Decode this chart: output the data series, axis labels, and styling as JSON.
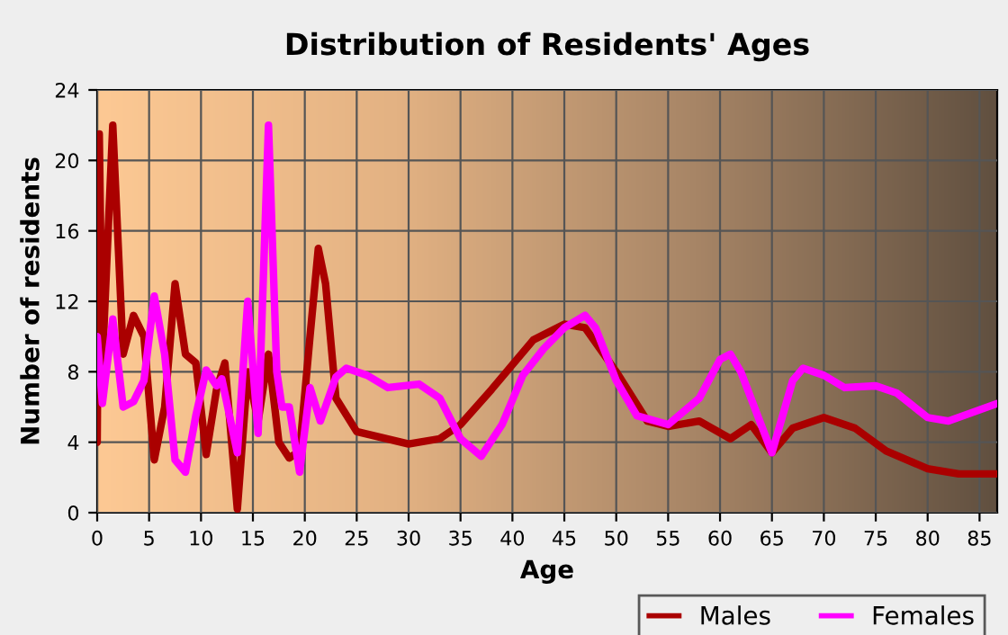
{
  "chart_data": {
    "type": "line",
    "title": "Distribution of Residents' Ages",
    "xlabel": "Age",
    "ylabel": "Number of residents",
    "xlim": [
      0,
      86.7
    ],
    "ylim": [
      0,
      24
    ],
    "xticks": [
      0,
      5,
      10,
      15,
      20,
      25,
      30,
      35,
      40,
      45,
      50,
      55,
      60,
      65,
      70,
      75,
      80,
      85
    ],
    "yticks": [
      0,
      4,
      8,
      12,
      16,
      20,
      24
    ],
    "grid": true,
    "legend": "bottom right",
    "marker": "none",
    "line_style": "solid",
    "series": [
      {
        "name": "Males",
        "color": "#aa0000",
        "x": [
          0,
          0.2,
          0.5,
          1.5,
          2.5,
          3.5,
          4.5,
          5.5,
          6.5,
          7.5,
          8.5,
          9.5,
          10.5,
          11.5,
          12.3,
          13.5,
          14.5,
          15.5,
          16.5,
          17.5,
          18.5,
          19.5,
          20.5,
          21.3,
          22,
          23,
          25,
          30,
          33,
          35,
          38,
          42,
          45,
          47,
          50,
          53,
          55,
          58,
          61,
          63,
          65,
          67,
          70,
          73,
          76,
          80,
          83,
          86.7
        ],
        "values": [
          4,
          21.5,
          8.5,
          22,
          9,
          11.2,
          10,
          3,
          6,
          13,
          9,
          8.5,
          3.3,
          7,
          8.5,
          0.2,
          8,
          5.2,
          9,
          4,
          3.1,
          3.5,
          10,
          15,
          13,
          6.5,
          4.6,
          3.9,
          4.2,
          5,
          7,
          9.8,
          10.7,
          10.5,
          8,
          5.2,
          4.9,
          5.2,
          4.2,
          5,
          3.4,
          4.8,
          5.4,
          4.8,
          3.5,
          2.5,
          2.2,
          2.2
        ]
      },
      {
        "name": "Females",
        "color": "#ff00ff",
        "x": [
          0,
          0.5,
          1.5,
          2.5,
          3.5,
          4.5,
          5.5,
          6.5,
          7.5,
          8.5,
          9.5,
          10.5,
          11.5,
          12,
          13.5,
          14.5,
          15.5,
          16.5,
          17.3,
          17.8,
          18.5,
          19.5,
          20.5,
          21.5,
          23,
          24,
          26,
          28,
          31,
          33,
          35,
          37,
          39,
          41,
          43,
          45,
          47,
          48,
          50,
          52,
          55,
          58,
          60,
          61,
          62,
          65,
          67,
          68,
          70,
          72,
          75,
          77,
          80,
          82,
          86.7
        ],
        "values": [
          10,
          6.2,
          11,
          6,
          6.3,
          7.5,
          12.3,
          9,
          3,
          2.3,
          5.5,
          8.1,
          7.2,
          7.6,
          3.4,
          12,
          4.5,
          22,
          8,
          6,
          6,
          2.3,
          7.1,
          5.2,
          7.7,
          8.2,
          7.8,
          7.1,
          7.3,
          6.5,
          4.2,
          3.2,
          5,
          7.8,
          9.3,
          10.5,
          11.2,
          10.5,
          7.5,
          5.5,
          5,
          6.5,
          8.7,
          9,
          8,
          3.4,
          7.5,
          8.2,
          7.8,
          7.1,
          7.2,
          6.8,
          5.4,
          5.2,
          6.2
        ]
      }
    ]
  }
}
